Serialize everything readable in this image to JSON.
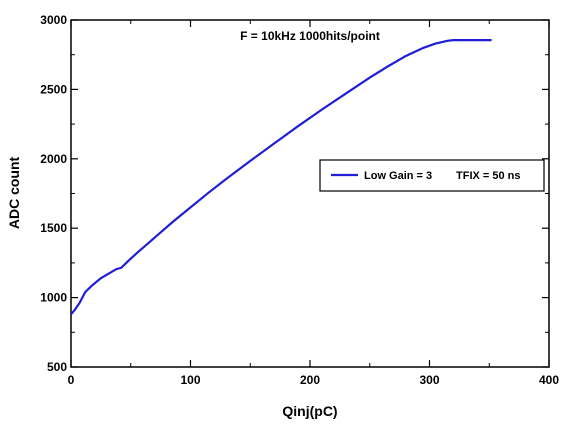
{
  "chart_data": {
    "type": "line",
    "title": "",
    "annotation": "F = 10kHz 1000hits/point",
    "xlabel": "Qinj(pC)",
    "ylabel": "ADC count",
    "xlim": [
      0,
      400
    ],
    "ylim": [
      500,
      3000
    ],
    "xticks": [
      0,
      100,
      200,
      300,
      400
    ],
    "yticks": [
      500,
      1000,
      1500,
      2000,
      2500,
      3000
    ],
    "grid": false,
    "legend_position": "right",
    "legend": {
      "label": "Low Gain = 3",
      "extra": "TFIX = 50 ns"
    },
    "series": [
      {
        "name": "Low Gain = 3",
        "color": "#1f1fd6",
        "x": [
          0,
          3,
          7,
          12,
          18,
          25,
          32,
          38,
          42,
          48,
          55,
          65,
          75,
          85,
          100,
          115,
          130,
          150,
          170,
          190,
          210,
          230,
          250,
          265,
          280,
          295,
          305,
          315,
          320,
          330,
          345,
          352
        ],
        "y": [
          880,
          910,
          960,
          1040,
          1090,
          1140,
          1175,
          1205,
          1215,
          1265,
          1320,
          1395,
          1470,
          1545,
          1650,
          1755,
          1855,
          1985,
          2110,
          2235,
          2355,
          2470,
          2585,
          2665,
          2740,
          2800,
          2830,
          2850,
          2855,
          2855,
          2855,
          2855
        ]
      }
    ]
  }
}
